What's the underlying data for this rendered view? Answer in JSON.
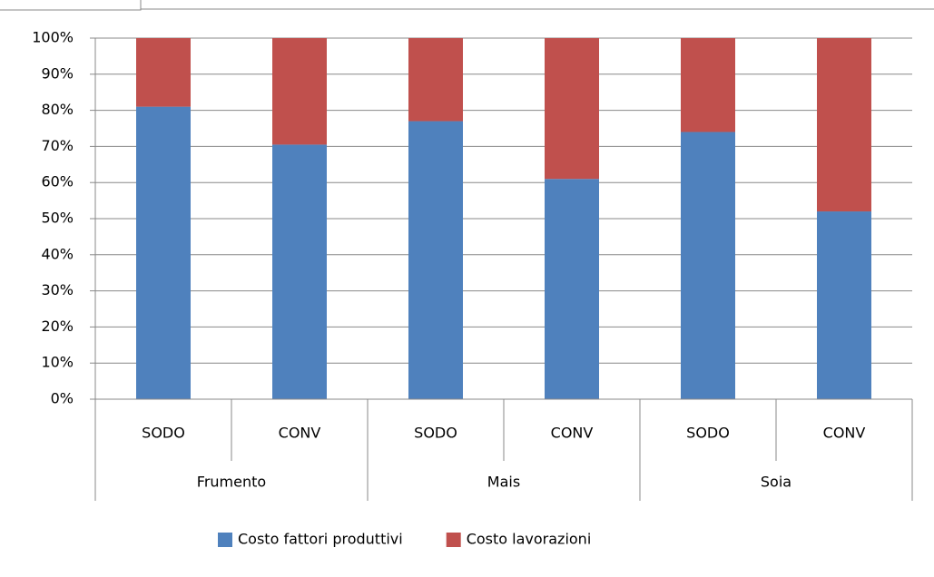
{
  "chart_data": {
    "type": "stacked_bar",
    "categories": [
      "SODO",
      "CONV",
      "SODO",
      "CONV",
      "SODO",
      "CONV"
    ],
    "groups": [
      "Frumento",
      "Mais",
      "Soia"
    ],
    "series": [
      {
        "name": "Costo fattori produttivi",
        "color": "#4f81bd",
        "values": [
          81,
          70.5,
          77,
          61,
          74,
          52
        ]
      },
      {
        "name": "Costo lavorazioni",
        "color": "#c0504d",
        "values": [
          19,
          29.5,
          23,
          39,
          26,
          48
        ]
      }
    ],
    "ylim": [
      0,
      100
    ],
    "yticks": [
      {
        "value": 0,
        "label": "0%"
      },
      {
        "value": 10,
        "label": "10%"
      },
      {
        "value": 20,
        "label": "20%"
      },
      {
        "value": 30,
        "label": "30%"
      },
      {
        "value": 40,
        "label": "40%"
      },
      {
        "value": 50,
        "label": "50%"
      },
      {
        "value": 60,
        "label": "60%"
      },
      {
        "value": 70,
        "label": "70%"
      },
      {
        "value": 80,
        "label": "80%"
      },
      {
        "value": 90,
        "label": "90%"
      },
      {
        "value": 100,
        "label": "100%"
      }
    ],
    "grid": true,
    "legend": "bottom"
  }
}
